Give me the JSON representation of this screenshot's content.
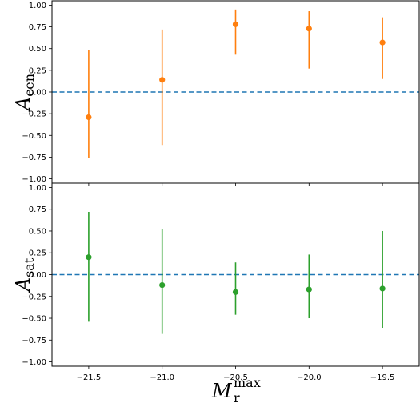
{
  "chart_data": [
    {
      "type": "scatter",
      "panel": "top",
      "ylabel_main": "A",
      "ylabel_sub": "cen",
      "ylim": [
        -1.05,
        1.05
      ],
      "yticks": [
        -1.0,
        -0.75,
        -0.5,
        -0.25,
        0.0,
        0.25,
        0.5,
        0.75,
        1.0
      ],
      "ytick_labels": [
        "−1.00",
        "−0.75",
        "−0.50",
        "−0.25",
        "0.00",
        "0.25",
        "0.50",
        "0.75",
        "1.00"
      ],
      "reference_line": {
        "y": 0.0,
        "color": "#1f77b4",
        "style": "dashed"
      },
      "series": [
        {
          "color": "#ff7f0e",
          "x": [
            -21.5,
            -21.0,
            -20.5,
            -20.0,
            -19.5
          ],
          "y": [
            -0.29,
            0.14,
            0.78,
            0.73,
            0.57
          ],
          "y_low": [
            -0.76,
            -0.61,
            0.43,
            0.27,
            0.15
          ],
          "y_high": [
            0.48,
            0.72,
            0.95,
            0.93,
            0.86
          ]
        }
      ]
    },
    {
      "type": "scatter",
      "panel": "bottom",
      "ylabel_main": "A",
      "ylabel_sub": "sat",
      "ylim": [
        -1.05,
        1.05
      ],
      "yticks": [
        -1.0,
        -0.75,
        -0.5,
        -0.25,
        0.0,
        0.25,
        0.5,
        0.75,
        1.0
      ],
      "ytick_labels": [
        "−1.00",
        "−0.75",
        "−0.50",
        "−0.25",
        "0.00",
        "0.25",
        "0.50",
        "0.75",
        "1.00"
      ],
      "reference_line": {
        "y": 0.0,
        "color": "#1f77b4",
        "style": "dashed"
      },
      "series": [
        {
          "color": "#2ca02c",
          "x": [
            -21.5,
            -21.0,
            -20.5,
            -20.0,
            -19.5
          ],
          "y": [
            0.2,
            -0.12,
            -0.2,
            -0.17,
            -0.16
          ],
          "y_low": [
            -0.54,
            -0.68,
            -0.46,
            -0.5,
            -0.61
          ],
          "y_high": [
            0.72,
            0.52,
            0.14,
            0.23,
            0.5
          ]
        }
      ]
    }
  ],
  "shared_x": {
    "xlabel_main": "M",
    "xlabel_sub": "r",
    "xlabel_sup": "max",
    "xlim": [
      -21.75,
      -19.25
    ],
    "xticks": [
      -21.5,
      -21.0,
      -20.5,
      -20.0,
      -19.5
    ],
    "xtick_labels": [
      "−21.5",
      "−21.0",
      "−20.5",
      "−20.0",
      "−19.5"
    ]
  }
}
